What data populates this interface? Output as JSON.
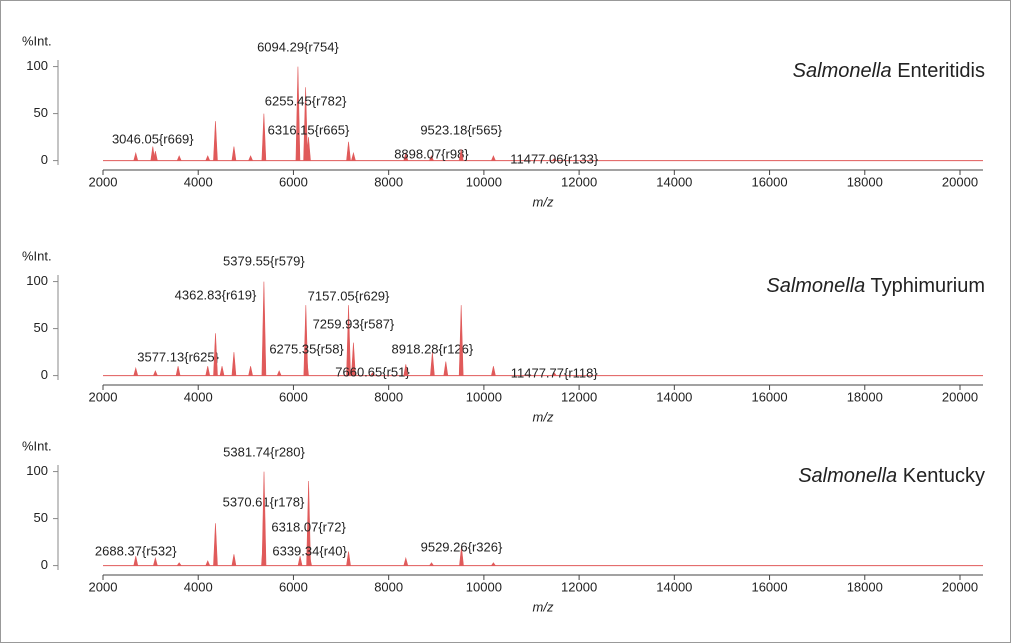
{
  "chart_data": [
    {
      "type": "spectrum",
      "title": {
        "genus": "Salmonella",
        "serovar": "Enteritidis"
      },
      "ylabel": "%Int.",
      "xlabel": "m/z",
      "color": "#e05a5a",
      "x": [
        2688,
        3046.05,
        3100,
        3600,
        4200,
        4362,
        4750,
        5100,
        5379,
        6094.29,
        6255.45,
        6316.15,
        7157,
        7260,
        8360,
        8898.07,
        9523.18,
        10200,
        11477.06
      ],
      "values": [
        8,
        15,
        10,
        5,
        5,
        42,
        15,
        5,
        50,
        100,
        78,
        25,
        20,
        8,
        8,
        5,
        12,
        5,
        2
      ],
      "labels": [
        null,
        "3046.05{r669}",
        null,
        null,
        null,
        null,
        null,
        null,
        null,
        "6094.29{r754}",
        "6255.45{r782}",
        "6316.15{r665}",
        null,
        null,
        null,
        "8898.07{r98}",
        "9523.18{r565}",
        null,
        "11477.06{r133}"
      ],
      "xlim": [
        2000,
        20480
      ],
      "ylim": [
        -10,
        107
      ],
      "yticks": [
        0,
        50,
        100
      ],
      "xticks": [
        2000,
        4000,
        6000,
        8000,
        10000,
        12000,
        14000,
        16000,
        18000,
        20000
      ]
    },
    {
      "type": "spectrum",
      "title": {
        "genus": "Salmonella",
        "serovar": "Typhimurium"
      },
      "ylabel": "%Int.",
      "xlabel": "m/z",
      "color": "#e05a5a",
      "x": [
        2688,
        3100,
        3577.13,
        4200,
        4362.83,
        4500,
        4750,
        5100,
        5379.55,
        5700,
        6260,
        6275.35,
        7157.05,
        7259.93,
        7660.65,
        8360,
        8918.28,
        9200,
        9523,
        10200,
        11477.77
      ],
      "values": [
        8,
        5,
        10,
        10,
        45,
        10,
        25,
        10,
        100,
        5,
        75,
        20,
        75,
        35,
        3,
        12,
        25,
        15,
        75,
        10,
        3
      ],
      "labels": [
        null,
        null,
        "3577.13{r625}",
        null,
        "4362.83{r619}",
        null,
        null,
        null,
        "5379.55{r579}",
        null,
        null,
        "6275.35{r58}",
        "7157.05{r629}",
        "7259.93{r587}",
        "7660.65{r51}",
        null,
        "8918.28{r126}",
        null,
        null,
        null,
        "11477.77{r118}"
      ],
      "xlim": [
        2000,
        20480
      ],
      "ylim": [
        -10,
        107
      ],
      "yticks": [
        0,
        50,
        100
      ],
      "xticks": [
        2000,
        4000,
        6000,
        8000,
        10000,
        12000,
        14000,
        16000,
        18000,
        20000
      ]
    },
    {
      "type": "spectrum",
      "title": {
        "genus": "Salmonella",
        "serovar": "Kentucky"
      },
      "ylabel": "%Int.",
      "xlabel": "m/z",
      "color": "#e05a5a",
      "x": [
        2688.37,
        3100,
        3600,
        4200,
        4362,
        4750,
        5370.61,
        5381.74,
        6139,
        6318.07,
        6339.34,
        7157,
        8360,
        8900,
        9529.26,
        10200
      ],
      "values": [
        10,
        8,
        3,
        5,
        45,
        12,
        30,
        100,
        10,
        90,
        10,
        15,
        8,
        3,
        20,
        3
      ],
      "labels": [
        "2688.37{r532}",
        null,
        null,
        null,
        null,
        null,
        "5370.61{r178}",
        "5381.74{r280}",
        null,
        "6318.07{r72}",
        "6339.34{r40}",
        null,
        null,
        null,
        "9529.26{r326}",
        null
      ],
      "xlim": [
        2000,
        20480
      ],
      "ylim": [
        -10,
        107
      ],
      "yticks": [
        0,
        50,
        100
      ],
      "xticks": [
        2000,
        4000,
        6000,
        8000,
        10000,
        12000,
        14000,
        16000,
        18000,
        20000
      ]
    }
  ]
}
